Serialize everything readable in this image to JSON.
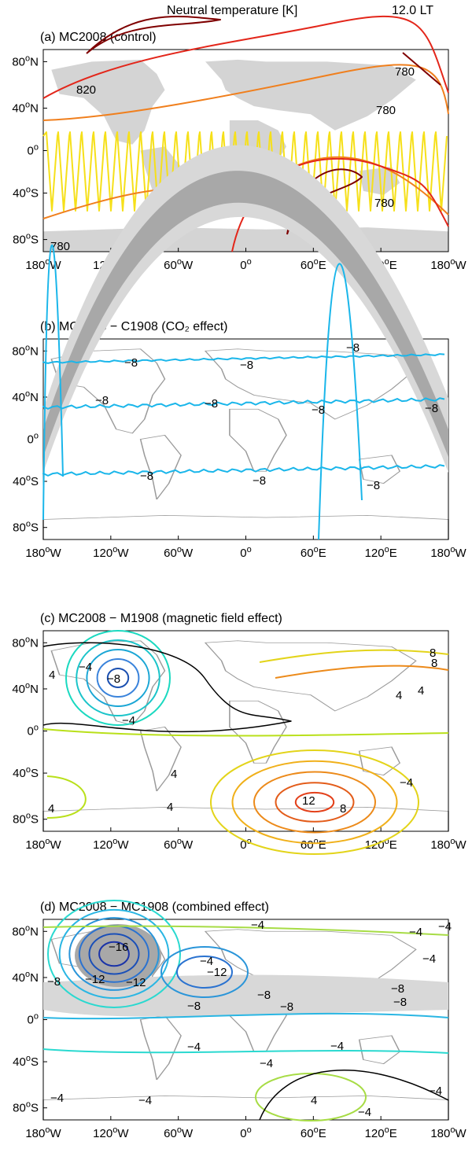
{
  "header": {
    "title": "Neutral temperature [K]",
    "local_time": "12.0 LT"
  },
  "chart_data": [
    {
      "type": "contour-map",
      "title": "(a) MC2008 (control)",
      "x_ticks": [
        "180°W",
        "120°W",
        "60°W",
        "0°",
        "60°E",
        "120°E",
        "180°W"
      ],
      "y_ticks": [
        "80°N",
        "40°N",
        "0°",
        "40°S",
        "80°S"
      ],
      "contour_labels": [
        "820",
        "780",
        "780",
        "820",
        "780"
      ],
      "contour_colors": {
        "high": "#7f0000",
        "upper": "#e3261a",
        "mid": "#f07f1d",
        "low": "#f6e01a"
      }
    },
    {
      "type": "contour-map",
      "title": "(b) MC2008 − C1908 (CO₂ effect)",
      "x_ticks": [
        "180°W",
        "120°W",
        "60°W",
        "0°",
        "60°E",
        "120°E",
        "180°W"
      ],
      "y_ticks": [
        "80°N",
        "40°N",
        "0°",
        "40°S",
        "80°S"
      ],
      "contour_labels": [
        "−8",
        "−8",
        "−8",
        "−8",
        "−8",
        "−8",
        "−8",
        "−8",
        "−8",
        "−8"
      ],
      "contour_colors": {
        "line": "#1ab6ea"
      }
    },
    {
      "type": "contour-map",
      "title": "(c) MC2008 − M1908 (magnetic field effect)",
      "x_ticks": [
        "180°W",
        "120°W",
        "60°W",
        "0°",
        "60°E",
        "120°E",
        "180°W"
      ],
      "y_ticks": [
        "80°N",
        "40°N",
        "0°",
        "40°S",
        "80°S"
      ],
      "contour_labels": [
        "−8",
        "−4",
        "−4",
        "4",
        "4",
        "4",
        "4",
        "12",
        "8",
        "8",
        "8",
        "4",
        "−4",
        "4"
      ],
      "contour_colors": {
        "neg": "#1ab6c9",
        "zero": "#000000",
        "pos": "#ec8a1a",
        "high": "#e3401a"
      }
    },
    {
      "type": "contour-map",
      "title": "(d) MC2008 − MC1908 (combined effect)",
      "x_ticks": [
        "180°W",
        "120°W",
        "60°W",
        "0°",
        "60°E",
        "120°E",
        "180°W"
      ],
      "y_ticks": [
        "80°N",
        "40°N",
        "0°",
        "40°S",
        "80°S"
      ],
      "contour_labels": [
        "−16",
        "−12",
        "−12",
        "−12",
        "−8",
        "−8",
        "−8",
        "−8",
        "−8",
        "−8",
        "−4",
        "−4",
        "−4",
        "−4",
        "−4",
        "−4",
        "−4",
        "−4",
        "−4",
        "4",
        "−4",
        "−4",
        "−4"
      ],
      "contour_colors": {
        "deep": "#1a33a8",
        "mid": "#2a83d9",
        "light": "#2ad9d0",
        "pos": "#a7dc45",
        "zero": "#000000"
      }
    }
  ]
}
